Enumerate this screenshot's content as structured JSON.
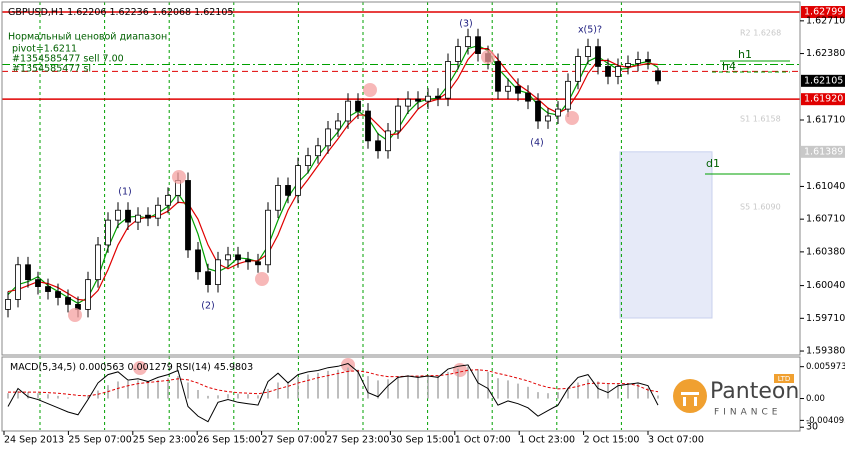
{
  "chart_data": {
    "type": "candlestick",
    "title": "GBPUSD,H1",
    "info": [
      "Нормальный ценовой диапазон",
      "pivot=1.6211",
      "#1354585477 sell 7.00",
      "#1354585477 sl"
    ],
    "open": [
      1.598,
      1.599,
      1.6025,
      1.601,
      1.6003,
      1.5998,
      1.5992,
      1.5985,
      1.598,
      1.601,
      1.6045,
      1.607,
      1.608,
      1.6068,
      1.6075,
      1.6072,
      1.6085,
      1.6095,
      1.611,
      1.604,
      1.6018,
      1.6005,
      1.603,
      1.6035,
      1.603,
      1.6028,
      1.6025,
      1.608,
      1.6105,
      1.6095,
      1.6125,
      1.6135,
      1.6145,
      1.6162,
      1.617,
      1.619,
      1.618,
      1.615,
      1.614,
      1.616,
      1.6185,
      1.6192,
      1.619,
      1.6195,
      1.6193,
      1.623,
      1.6245,
      1.6255,
      1.6238,
      1.623,
      1.62,
      1.6205,
      1.6198,
      1.619,
      1.617,
      1.6175,
      1.6182,
      1.621,
      1.6235,
      1.6245,
      1.6225,
      1.6215,
      1.6225,
      1.6228,
      1.6232,
      1.62206
    ],
    "high": [
      1.5998,
      1.6033,
      1.6033,
      1.6018,
      1.6011,
      1.6006,
      1.6,
      1.5993,
      1.6018,
      1.6053,
      1.6078,
      1.6088,
      1.6088,
      1.6083,
      1.6083,
      1.6093,
      1.6103,
      1.6118,
      1.6118,
      1.6048,
      1.6026,
      1.6038,
      1.6043,
      1.6043,
      1.6038,
      1.6036,
      1.6088,
      1.6113,
      1.6113,
      1.6133,
      1.6143,
      1.6153,
      1.617,
      1.6178,
      1.6198,
      1.6198,
      1.6188,
      1.6158,
      1.6168,
      1.6193,
      1.62,
      1.62,
      1.6203,
      1.6203,
      1.6238,
      1.6253,
      1.6263,
      1.6263,
      1.6246,
      1.6238,
      1.6213,
      1.6213,
      1.6206,
      1.6198,
      1.6183,
      1.619,
      1.6218,
      1.6243,
      1.6253,
      1.6253,
      1.6233,
      1.6233,
      1.6236,
      1.624,
      1.624,
      1.62236
    ],
    "low": [
      1.5972,
      1.5982,
      1.6002,
      1.5995,
      1.599,
      1.5984,
      1.5977,
      1.5972,
      1.5972,
      1.6002,
      1.6037,
      1.6062,
      1.606,
      1.606,
      1.6064,
      1.6064,
      1.6077,
      1.6087,
      1.6032,
      1.601,
      1.5997,
      1.5997,
      1.6022,
      1.6022,
      1.602,
      1.6017,
      1.6017,
      1.6072,
      1.6087,
      1.6087,
      1.6117,
      1.6127,
      1.6137,
      1.6154,
      1.6162,
      1.6172,
      1.6142,
      1.6132,
      1.6132,
      1.6152,
      1.6177,
      1.6182,
      1.6182,
      1.6185,
      1.6185,
      1.6222,
      1.6237,
      1.623,
      1.6222,
      1.6192,
      1.6192,
      1.619,
      1.6182,
      1.6162,
      1.6162,
      1.6167,
      1.6174,
      1.6202,
      1.6227,
      1.6217,
      1.6207,
      1.6207,
      1.6217,
      1.622,
      1.6222,
      1.62068
    ],
    "close": [
      1.599,
      1.6025,
      1.601,
      1.6003,
      1.5998,
      1.5992,
      1.5985,
      1.598,
      1.601,
      1.6045,
      1.607,
      1.608,
      1.6068,
      1.6075,
      1.6072,
      1.6085,
      1.6095,
      1.611,
      1.604,
      1.6018,
      1.6005,
      1.603,
      1.6035,
      1.603,
      1.6028,
      1.6025,
      1.608,
      1.6105,
      1.6095,
      1.6125,
      1.6135,
      1.6145,
      1.6162,
      1.617,
      1.619,
      1.618,
      1.615,
      1.614,
      1.616,
      1.6185,
      1.6192,
      1.619,
      1.6195,
      1.6193,
      1.623,
      1.6245,
      1.6255,
      1.6238,
      1.623,
      1.62,
      1.6205,
      1.6198,
      1.619,
      1.617,
      1.6175,
      1.6182,
      1.621,
      1.6235,
      1.6245,
      1.6225,
      1.6215,
      1.6225,
      1.6228,
      1.6232,
      1.623,
      1.62105
    ],
    "series": [
      {
        "color": "#00a000",
        "values": [
          1.5995,
          1.6005,
          1.6008,
          1.6013,
          1.6004,
          1.5998,
          1.5992,
          1.5986,
          1.5992,
          1.6012,
          1.6042,
          1.6065,
          1.6073,
          1.6074,
          1.6072,
          1.6077,
          1.6084,
          1.6097,
          1.6082,
          1.6056,
          1.6021,
          1.6018,
          1.6023,
          1.6032,
          1.6031,
          1.6028,
          1.6044,
          1.607,
          1.6093,
          1.6108,
          1.6118,
          1.6135,
          1.6147,
          1.6159,
          1.6174,
          1.618,
          1.6173,
          1.6157,
          1.615,
          1.6162,
          1.6179,
          1.6189,
          1.6192,
          1.6193,
          1.6206,
          1.6223,
          1.6243,
          1.6246,
          1.6241,
          1.6223,
          1.6212,
          1.6201,
          1.6198,
          1.6186,
          1.6178,
          1.6176,
          1.6189,
          1.6209,
          1.623,
          1.6235,
          1.6228,
          1.6222,
          1.6223,
          1.6228,
          1.623,
          1.6224
        ]
      },
      {
        "color": "#e00000",
        "values": [
          1.5998,
          1.6,
          1.6004,
          1.6008,
          1.6006,
          1.6002,
          1.5996,
          1.599,
          1.5989,
          1.5999,
          1.602,
          1.6045,
          1.6063,
          1.6071,
          1.6073,
          1.6074,
          1.6079,
          1.6088,
          1.6087,
          1.6071,
          1.6045,
          1.6026,
          1.6021,
          1.6026,
          1.6029,
          1.6029,
          1.6036,
          1.6055,
          1.608,
          1.6098,
          1.6111,
          1.6125,
          1.6139,
          1.6152,
          1.6166,
          1.6176,
          1.6176,
          1.6166,
          1.6156,
          1.6157,
          1.6169,
          1.6182,
          1.6189,
          1.6192,
          1.6199,
          1.6213,
          1.6232,
          1.6243,
          1.6243,
          1.6232,
          1.6219,
          1.6207,
          1.62,
          1.6192,
          1.6183,
          1.6178,
          1.6183,
          1.6198,
          1.6218,
          1.6231,
          1.6231,
          1.6226,
          1.6224,
          1.6226,
          1.6228,
          1.6227
        ]
      }
    ],
    "ylim": [
      1.5934,
      1.629
    ],
    "yticks": [
      {
        "value": 1.6271,
        "label": "1.62710"
      },
      {
        "value": 1.6238,
        "label": "1.62380"
      },
      {
        "value": 1.6171,
        "label": "1.61710"
      },
      {
        "value": 1.6104,
        "label": "1.61040"
      },
      {
        "value": 1.6071,
        "label": "1.60710"
      },
      {
        "value": 1.6038,
        "label": "1.60380"
      },
      {
        "value": 1.6004,
        "label": "1.60040"
      },
      {
        "value": 1.5971,
        "label": "1.59710"
      },
      {
        "value": 1.5938,
        "label": "1.59380"
      }
    ],
    "levels": [
      {
        "value": 1.62799,
        "color": "#e00000",
        "style": "solid"
      },
      {
        "value": 1.6192,
        "label": "1.61920",
        "color": "#e00000",
        "style": "solid"
      },
      {
        "value": 1.6227,
        "color": "#00a000",
        "style": "dashdot"
      },
      {
        "value": 1.622,
        "color": "#e00000",
        "style": "dashed"
      },
      {
        "value": 1.61389,
        "color": "#c8c8c8",
        "style": "none"
      }
    ],
    "xlabels": [
      "24 Sep 2013",
      "25 Sep 07:00",
      "25 Sep 23:00",
      "26 Sep 15:00",
      "27 Sep 07:00",
      "27 Sep 23:00",
      "30 Sep 15:00",
      "1 Oct 07:00",
      "1 Oct 23:00",
      "2 Oct 15:00",
      "3 Oct 07:00"
    ],
    "waves": [
      "(1)",
      "(2)",
      "(3)",
      "(4)",
      "x(5)?"
    ],
    "timeframes": [
      "h1",
      "h4",
      "d1"
    ],
    "projections": [
      "R2 1.6268",
      "S1 1.6158",
      "S5 1.6090"
    ],
    "indicator": {
      "macd_title": "MACD(5,34,5)",
      "rsi_title": "RSI(14)",
      "macd_hist": [
        0.001,
        0.0014,
        0.0012,
        0.001,
        0.0008,
        0.0005,
        0.0002,
        0.0,
        0.0006,
        0.0015,
        0.0025,
        0.0032,
        0.0033,
        0.0034,
        0.0033,
        0.0035,
        0.0038,
        0.0042,
        0.003,
        0.0016,
        0.0005,
        0.0006,
        0.0008,
        0.0009,
        0.0008,
        0.0006,
        0.0018,
        0.003,
        0.0032,
        0.004,
        0.0045,
        0.0048,
        0.0052,
        0.0054,
        0.0058,
        0.0054,
        0.0042,
        0.0034,
        0.0036,
        0.0042,
        0.0044,
        0.0043,
        0.0043,
        0.0042,
        0.005,
        0.0056,
        0.006,
        0.0055,
        0.005,
        0.0038,
        0.0034,
        0.0028,
        0.0022,
        0.0012,
        0.001,
        0.0012,
        0.002,
        0.003,
        0.0036,
        0.0032,
        0.0027,
        0.0028,
        0.0028,
        0.0028,
        0.002,
        0.000563
      ],
      "macd_signal": [
        0.0012,
        0.0012,
        0.0012,
        0.0012,
        0.0011,
        0.001,
        0.0008,
        0.0006,
        0.0005,
        0.0008,
        0.0013,
        0.0019,
        0.0024,
        0.0028,
        0.003,
        0.0032,
        0.0034,
        0.0037,
        0.0035,
        0.0029,
        0.0021,
        0.0016,
        0.0013,
        0.0011,
        0.001,
        0.0009,
        0.0012,
        0.0018,
        0.0023,
        0.0029,
        0.0034,
        0.0039,
        0.0043,
        0.0047,
        0.0051,
        0.0052,
        0.0049,
        0.0044,
        0.0041,
        0.0041,
        0.0042,
        0.0042,
        0.0043,
        0.0043,
        0.0045,
        0.0049,
        0.0053,
        0.0054,
        0.0052,
        0.0047,
        0.0043,
        0.0038,
        0.0033,
        0.0026,
        0.0021,
        0.0018,
        0.0019,
        0.0023,
        0.0028,
        0.0029,
        0.0028,
        0.0028,
        0.0028,
        0.0024,
        0.0016,
        0.001279
      ],
      "rsi": [
        45,
        58,
        52,
        50,
        47,
        44,
        41,
        39,
        50,
        62,
        68,
        70,
        64,
        65,
        63,
        66,
        68,
        71,
        45,
        38,
        34,
        48,
        50,
        48,
        47,
        46,
        63,
        69,
        62,
        68,
        70,
        71,
        73,
        74,
        76,
        70,
        55,
        52,
        60,
        66,
        67,
        66,
        67,
        66,
        72,
        74,
        75,
        62,
        58,
        46,
        49,
        47,
        44,
        38,
        42,
        46,
        58,
        66,
        68,
        58,
        55,
        60,
        61,
        62,
        60,
        45.9803
      ],
      "macd_lim": [
        -0.0059,
        0.0076
      ],
      "macd_ticks": [
        0.005973,
        {
          "value": 0,
          "label": "0.00"
        },
        -0.004095
      ],
      "rsi_lim": [
        28,
        80
      ],
      "rsi_ticks": [
        30
      ],
      "hist_color": "#a8a8a8",
      "signal_color": "#e00000",
      "rsi_color": "#000000"
    },
    "logo": {
      "name": "Panteon",
      "sub": "FINANCE",
      "tag": "LTD"
    }
  }
}
